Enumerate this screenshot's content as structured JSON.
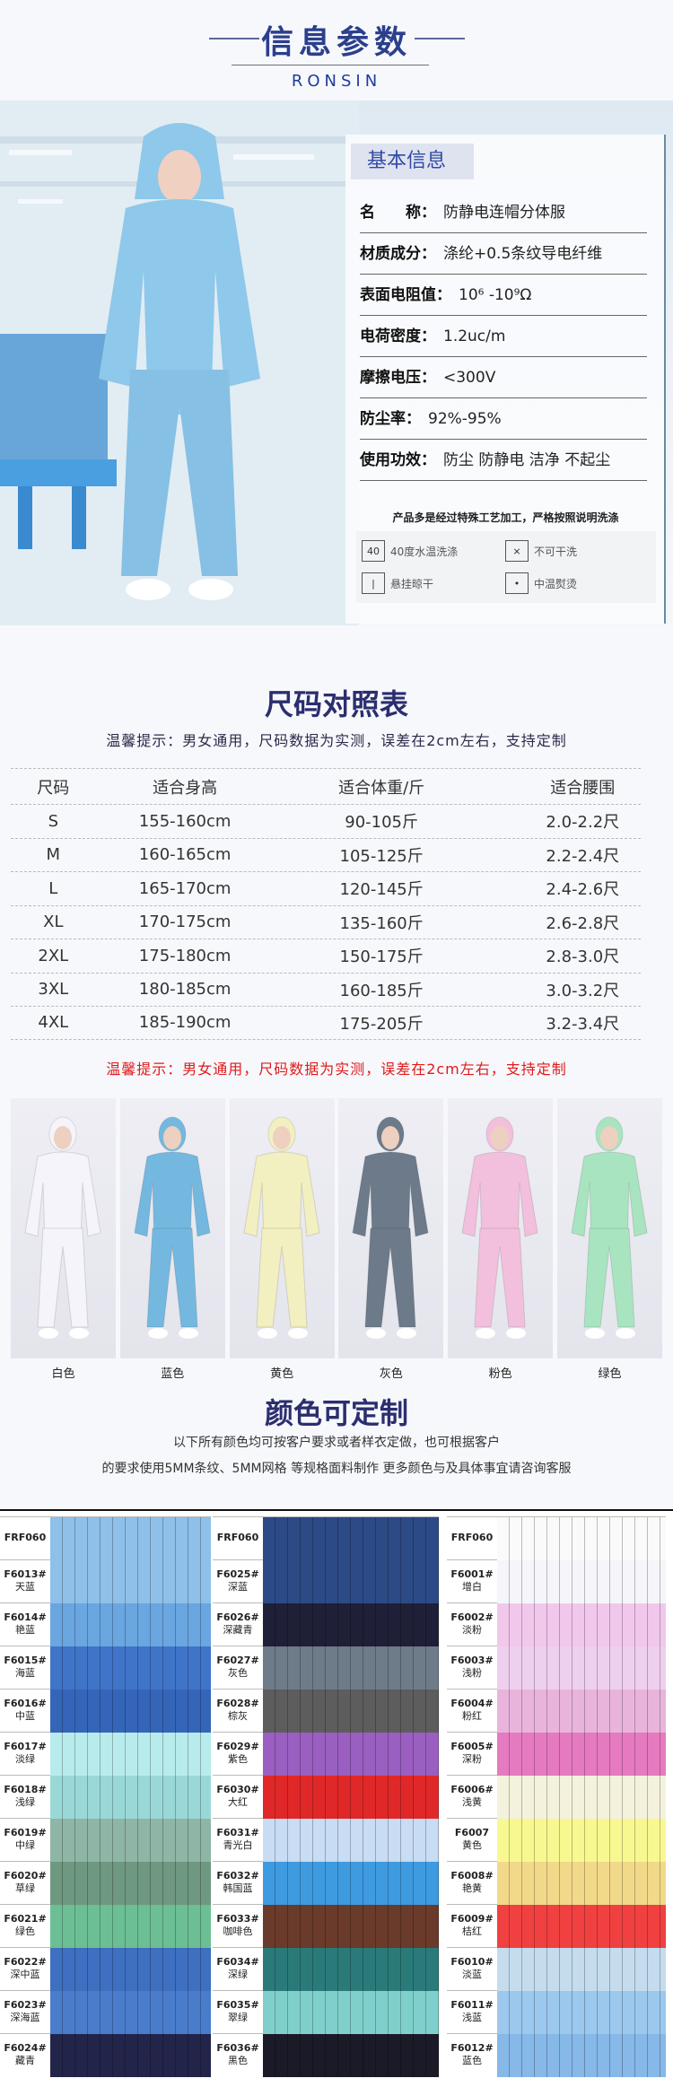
{
  "header": {
    "title": "信息参数",
    "subtitle": "RONSIN"
  },
  "info": {
    "section_label": "基本信息",
    "rows": [
      {
        "label": "名　　称：",
        "value": "防静电连帽分体服"
      },
      {
        "label": "材质成分：",
        "value": "涤纶+0.5条纹导电纤维"
      },
      {
        "label": "表面电阻值：",
        "value": "10⁶ -10⁹Ω"
      },
      {
        "label": "电荷密度：",
        "value": "1.2uc/m"
      },
      {
        "label": "摩擦电压：",
        "value": "<300V"
      },
      {
        "label": "防尘率：",
        "value": "92%-95%"
      },
      {
        "label": "使用功效：",
        "value": "防尘  防静电  洁净  不起尘"
      }
    ],
    "note": "产品多是经过特殊工艺加工，严格按照说明洗涤",
    "care": [
      {
        "icon": "wash-40-icon",
        "label": "40度水温洗涤",
        "glyph": "40"
      },
      {
        "icon": "no-dry-clean-icon",
        "label": "不可干洗",
        "glyph": "⨯"
      },
      {
        "icon": "hang-dry-icon",
        "label": "悬挂晾干",
        "glyph": "|"
      },
      {
        "icon": "iron-medium-icon",
        "label": "中温熨烫",
        "glyph": "•"
      }
    ]
  },
  "size": {
    "title": "尺码对照表",
    "hint": "温馨提示：男女通用，尺码数据为实测，误差在2cm左右，支持定制",
    "headers": [
      "尺码",
      "适合身高",
      "适合体重/斤",
      "适合腰围"
    ],
    "rows": [
      [
        "S",
        "155-160cm",
        "90-105斤",
        "2.0-2.2尺"
      ],
      [
        "M",
        "160-165cm",
        "105-125斤",
        "2.2-2.4尺"
      ],
      [
        "L",
        "165-170cm",
        "120-145斤",
        "2.4-2.6尺"
      ],
      [
        "XL",
        "170-175cm",
        "135-160斤",
        "2.6-2.8尺"
      ],
      [
        "2XL",
        "175-180cm",
        "150-175斤",
        "2.8-3.0尺"
      ],
      [
        "3XL",
        "180-185cm",
        "160-185斤",
        "3.0-3.2尺"
      ],
      [
        "4XL",
        "185-190cm",
        "175-205斤",
        "3.2-3.4尺"
      ]
    ],
    "red_hint": "温馨提示：男女通用，尺码数据为实测，误差在2cm左右，支持定制"
  },
  "outfits": [
    {
      "label": "白色",
      "color": "#f4f4fa"
    },
    {
      "label": "蓝色",
      "color": "#74b8e0"
    },
    {
      "label": "黄色",
      "color": "#f2f0c0"
    },
    {
      "label": "灰色",
      "color": "#6c7a8a"
    },
    {
      "label": "粉色",
      "color": "#f2c0dc"
    },
    {
      "label": "绿色",
      "color": "#a8e4c0"
    }
  ],
  "colors": {
    "title": "颜色可定制",
    "line1": "以下所有颜色均可按客户要求或者样衣定做，也可根据客户",
    "line2": "的要求使用5MM条纹、5MM网格 等规格面料制作 更多颜色与及具体事宜请咨询客服",
    "columns": [
      [
        {
          "code": "FRF060",
          "name": "",
          "color": "#8ec0ea"
        },
        {
          "code": "F6013#",
          "name": "天蓝",
          "color": "#8ec0ea"
        },
        {
          "code": "F6014#",
          "name": "艳蓝",
          "color": "#6aa6e0"
        },
        {
          "code": "F6015#",
          "name": "海蓝",
          "color": "#3f74c8"
        },
        {
          "code": "F6016#",
          "name": "中蓝",
          "color": "#3565b8"
        },
        {
          "code": "F6017#",
          "name": "淡绿",
          "color": "#b8ecec"
        },
        {
          "code": "F6018#",
          "name": "浅绿",
          "color": "#9ad8d8"
        },
        {
          "code": "F6019#",
          "name": "中绿",
          "color": "#8fb5a6"
        },
        {
          "code": "F6020#",
          "name": "草绿",
          "color": "#6f9880"
        },
        {
          "code": "F6021#",
          "name": "绿色",
          "color": "#6cbf94"
        },
        {
          "code": "F6022#",
          "name": "深中蓝",
          "color": "#3e6fc0"
        },
        {
          "code": "F6023#",
          "name": "深海蓝",
          "color": "#4a7ccc"
        },
        {
          "code": "F6024#",
          "name": "藏青",
          "color": "#22244a"
        }
      ],
      [
        {
          "code": "FRF060",
          "name": "",
          "color": "#2c4a86"
        },
        {
          "code": "F6025#",
          "name": "深蓝",
          "color": "#2c4a86"
        },
        {
          "code": "F6026#",
          "name": "深藏青",
          "color": "#1f1f38"
        },
        {
          "code": "F6027#",
          "name": "灰色",
          "color": "#6e7b88"
        },
        {
          "code": "F6028#",
          "name": "棕灰",
          "color": "#5d5d5d"
        },
        {
          "code": "F6029#",
          "name": "紫色",
          "color": "#9a5fc0"
        },
        {
          "code": "F6030#",
          "name": "大红",
          "color": "#e02828"
        },
        {
          "code": "F6031#",
          "name": "青光白",
          "color": "#c8dcf4"
        },
        {
          "code": "F6032#",
          "name": "韩国蓝",
          "color": "#3f9be0"
        },
        {
          "code": "F6033#",
          "name": "咖啡色",
          "color": "#6a3a2a"
        },
        {
          "code": "F6034#",
          "name": "深绿",
          "color": "#2a7a7a"
        },
        {
          "code": "F6035#",
          "name": "翠绿",
          "color": "#7fd0cc"
        },
        {
          "code": "F6036#",
          "name": "黑色",
          "color": "#1a1a28"
        }
      ],
      [
        {
          "code": "FRF060",
          "name": "",
          "color": "#fafafa"
        },
        {
          "code": "F6001#",
          "name": "增白",
          "color": "#f6f6fa"
        },
        {
          "code": "F6002#",
          "name": "淡粉",
          "color": "#f1c8ec"
        },
        {
          "code": "F6003#",
          "name": "浅粉",
          "color": "#eed0ee"
        },
        {
          "code": "F6004#",
          "name": "粉红",
          "color": "#e8b4dc"
        },
        {
          "code": "F6005#",
          "name": "深粉",
          "color": "#e67ac0"
        },
        {
          "code": "F6006#",
          "name": "浅黄",
          "color": "#f4f2dc"
        },
        {
          "code": "F6007",
          "name": "黄色",
          "color": "#f8f890"
        },
        {
          "code": "F6008#",
          "name": "艳黄",
          "color": "#f2d98a"
        },
        {
          "code": "F6009#",
          "name": "桔红",
          "color": "#f04040"
        },
        {
          "code": "F6010#",
          "name": "淡蓝",
          "color": "#c4dcee"
        },
        {
          "code": "F6011#",
          "name": "浅蓝",
          "color": "#9cc8ee"
        },
        {
          "code": "F6012#",
          "name": "蓝色",
          "color": "#86b8e8"
        }
      ]
    ]
  }
}
